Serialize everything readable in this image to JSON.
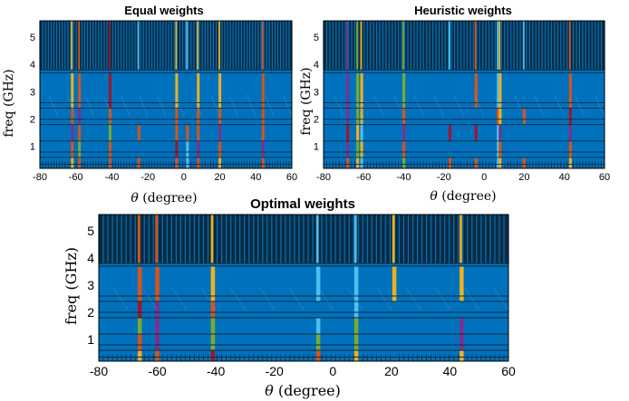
{
  "chart_data": [
    {
      "type": "heatmap",
      "title": "Equal weights",
      "xlabel_symbol": "θ",
      "xlabel_unit": "(degree)",
      "ylabel": "freq (GHz)",
      "xlim": [
        -80,
        60
      ],
      "ylim": [
        0.2,
        5.6
      ],
      "xticks": [
        -80,
        -60,
        -40,
        -20,
        0,
        20,
        40,
        60
      ],
      "yticks": [
        1,
        2,
        3,
        4,
        5
      ],
      "grid": "dense",
      "background_color": "#0072BD",
      "upper_band_color": "#0b2a40",
      "stripes": [
        {
          "x": -62,
          "colors": [
            "#EDB120",
            "#D95319",
            "#7E2F8E",
            "#D95319",
            "#EDB120"
          ]
        },
        {
          "x": -58,
          "colors": [
            "#D95319",
            "#77AC30",
            "#D95319",
            "#7E2F8E",
            "#D95319"
          ]
        },
        {
          "x": -41,
          "colors": [
            "#D95319",
            "#D95319",
            "#77AC30",
            "#D95319",
            "#A2142F"
          ]
        },
        {
          "x": -25,
          "colors": [
            "#D95319",
            "#0072BD",
            "#D95319",
            "#0072BD",
            "#0072BD"
          ]
        },
        {
          "x": -4,
          "colors": [
            "#D95319",
            "#A2142F",
            "#D95319",
            "#D95319",
            "#EDB120"
          ]
        },
        {
          "x": 2,
          "colors": [
            "#4DBEEE",
            "#4DBEEE",
            "#D95319",
            "#0072BD",
            "#0072BD"
          ]
        },
        {
          "x": 8,
          "colors": [
            "#D95319",
            "#7E2F8E",
            "#D95319",
            "#D95319",
            "#EDB120"
          ]
        },
        {
          "x": 20,
          "colors": [
            "#EDB120",
            "#D95319",
            "#7E2F8E",
            "#D95319",
            "#EDB120"
          ]
        },
        {
          "x": 44,
          "colors": [
            "#D95319",
            "#7E2F8E",
            "#D95319",
            "#D95319",
            "#D95319"
          ]
        }
      ]
    },
    {
      "type": "heatmap",
      "title": "Heuristic weights",
      "xlabel_symbol": "θ",
      "xlabel_unit": "(degree)",
      "ylabel": "freq (GHz)",
      "xlim": [
        -80,
        60
      ],
      "ylim": [
        0.2,
        5.6
      ],
      "xticks": [
        -80,
        -60,
        -40,
        -20,
        0,
        20,
        40,
        60
      ],
      "yticks": [
        1,
        2,
        3,
        4,
        5
      ],
      "grid": "dense",
      "background_color": "#0072BD",
      "upper_band_color": "#0b2a40",
      "stripes": [
        {
          "x": -68,
          "colors": [
            "#D95319",
            "#7E2F8E",
            "#A2142F",
            "#7E2F8E",
            "#7E2F8E"
          ]
        },
        {
          "x": -63,
          "colors": [
            "#EDB120",
            "#77AC30",
            "#EDB120",
            "#77AC30",
            "#77AC30"
          ]
        },
        {
          "x": -61,
          "colors": [
            "#4DBEEE",
            "#EDB120",
            "#4DBEEE",
            "#EDB120",
            "#EDB120"
          ]
        },
        {
          "x": -40,
          "colors": [
            "#77AC30",
            "#D95319",
            "#7E2F8E",
            "#D95319",
            "#77AC30"
          ]
        },
        {
          "x": -17,
          "colors": [
            "#D95319",
            "#0072BD",
            "#A2142F",
            "#0072BD",
            "#0072BD"
          ]
        },
        {
          "x": -4,
          "colors": [
            "#D95319",
            "#0072BD",
            "#A2142F",
            "#0072BD",
            "#D95319"
          ]
        },
        {
          "x": 7,
          "colors": [
            "#4DBEEE",
            "#4DBEEE",
            "#4DBEEE",
            "#D95319",
            "#4DBEEE"
          ]
        },
        {
          "x": 8,
          "colors": [
            "#EDB120",
            "#D95319",
            "#7E2F8E",
            "#EDB120",
            "#EDB120"
          ]
        },
        {
          "x": 20,
          "colors": [
            "#D95319",
            "#0072BD",
            "#0072BD",
            "#D95319",
            "#0072BD"
          ]
        },
        {
          "x": 43,
          "colors": [
            "#EDB120",
            "#D95319",
            "#7E2F8E",
            "#A2142F",
            "#D95319"
          ]
        }
      ]
    },
    {
      "type": "heatmap",
      "title": "Optimal weights",
      "xlabel_symbol": "θ",
      "xlabel_unit": "(degree)",
      "ylabel": "freq (GHz)",
      "xlim": [
        -80,
        60
      ],
      "ylim": [
        0.2,
        5.6
      ],
      "xticks": [
        -80,
        -60,
        -40,
        -20,
        0,
        20,
        40,
        60
      ],
      "yticks": [
        1,
        2,
        3,
        4,
        5
      ],
      "grid": "dense",
      "background_color": "#0072BD",
      "upper_band_color": "#0b2a40",
      "stripes": [
        {
          "x": -66,
          "colors": [
            "#EDB120",
            "#D95319",
            "#77AC30",
            "#A2142F",
            "#D95319"
          ]
        },
        {
          "x": -60,
          "colors": [
            "#D95319",
            "#7E2F8E",
            "#7E2F8E",
            "#7E2F8E",
            "#D95319"
          ]
        },
        {
          "x": -41,
          "colors": [
            "#A2142F",
            "#77AC30",
            "#77AC30",
            "#D95319",
            "#EDB120"
          ]
        },
        {
          "x": -5,
          "colors": [
            "#D95319",
            "#77AC30",
            "#4DBEEE",
            "#0072BD",
            "#4DBEEE"
          ]
        },
        {
          "x": 8,
          "colors": [
            "#EDB120",
            "#77AC30",
            "#77AC30",
            "#4DBEEE",
            "#4DBEEE"
          ]
        },
        {
          "x": 21,
          "colors": [
            "#0072BD",
            "#0072BD",
            "#0072BD",
            "#0072BD",
            "#EDB120"
          ]
        },
        {
          "x": 44,
          "colors": [
            "#EDB120",
            "#7E2F8E",
            "#7E2F8E",
            "#0072BD",
            "#EDB120"
          ]
        }
      ]
    }
  ]
}
